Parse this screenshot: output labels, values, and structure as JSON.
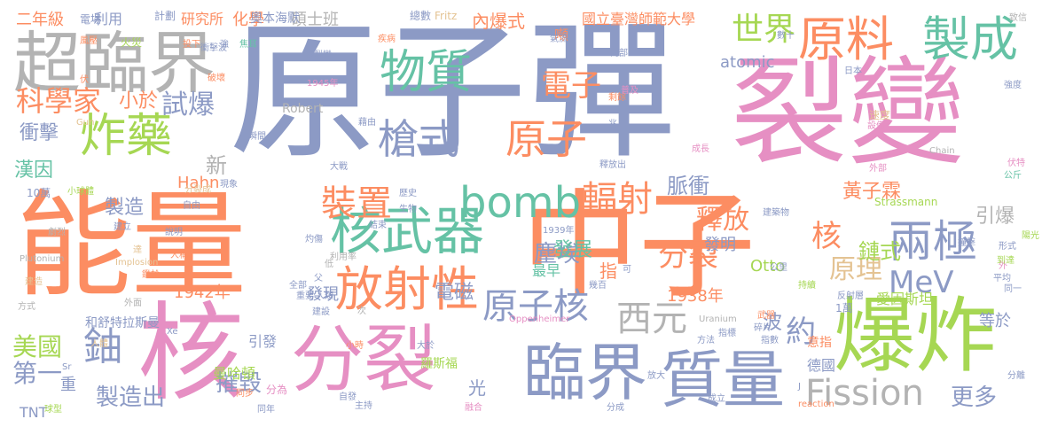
{
  "colors": {
    "slate": "#8c9ac5",
    "pink": "#e68fc3",
    "orange": "#fc8d62",
    "green": "#65c2a5",
    "lime": "#a6d753",
    "gold": "#e4c393",
    "gray": "#b3b3b3",
    "yellow": "#ffd82f"
  },
  "words": [
    "原子彈",
    "裂變",
    "能量",
    "中子",
    "核",
    "分裂",
    "爆炸",
    "超臨界",
    "臨界",
    "質量",
    "放射性",
    "核武器",
    "原料",
    "製成",
    "物質",
    "炸藥",
    "bomb",
    "槍式",
    "原子",
    "輻射",
    "裝置",
    "兩極",
    "西元",
    "原子核",
    "鈾",
    "Fission",
    "世界",
    "MeV",
    "約",
    "分裂",
    "核",
    "電子",
    "科學家",
    "試爆",
    "釋放",
    "原理",
    "更多",
    "美國",
    "第一",
    "製造出",
    "摧毀",
    "脈衝",
    "鏈式",
    "黃子霖",
    "引爆",
    "塵埃",
    "小於",
    "衝擊",
    "新",
    "製造",
    "電磁",
    "發明",
    "1938年",
    "漢因",
    "Hahn",
    "利用",
    "化學",
    "研究所",
    "二年級",
    "碩士班",
    "內爆式",
    "國立臺灣師範大學",
    "奧本海默",
    "光",
    "愛因斯坦",
    "德國",
    "等於",
    "Otto",
    "Strassmann",
    "atomic",
    "1942年",
    "發現",
    "引發",
    "曼哈頓",
    "和舒特拉斯曼",
    "羅斯福",
    "1945年",
    "Robert",
    "TNT",
    "重",
    "波",
    "意指",
    "最早",
    "發展",
    "指",
    "n",
    "噸",
    "計劃",
    "總數",
    "Fritz",
    "火災",
    "電場",
    "強",
    "焦耳",
    "核裂變",
    "疾病",
    "氣流",
    "內部",
    "日本",
    "強度",
    "風壓",
    "伏",
    "破壞",
    "藉由",
    "瞬間",
    "兆",
    "剩餘",
    "設備",
    "速度",
    "外部",
    "Plutonium",
    "Gun",
    "Chain",
    "大戰",
    "釋放出",
    "10萬",
    "小球體",
    "生物",
    "歷史",
    "成長",
    "伏特",
    "公斤",
    "自由",
    "現象",
    "結束",
    "1939年",
    "建立",
    "外",
    "劇烈",
    "建築物",
    "撞擊",
    "陽光",
    "形式",
    "Implosion",
    "人稱",
    "利用率",
    "灼傷",
    "公里",
    "平均",
    "到達",
    "方式",
    "外面",
    "人類",
    "同一",
    "幾百",
    "1萬",
    "持續",
    "反射層",
    "Oppenheimer",
    "Uranium",
    "武器",
    "父",
    "碎片",
    "指數",
    "指標",
    "方法",
    "同步",
    "分為",
    "Xe",
    "人體",
    "小時",
    "大於",
    "放大",
    "J",
    "分離",
    "自發",
    "球型",
    "同年",
    "主持",
    "融合",
    "分成",
    "reaction",
    "致信",
    "成立",
    "Sr",
    "數十",
    "衝擊波",
    "重要",
    "全部",
    "說明",
    "建造",
    "鑑於",
    "建設",
    "分裂成",
    "投下",
    "達",
    "可",
    "普及",
    "低",
    "次"
  ]
}
